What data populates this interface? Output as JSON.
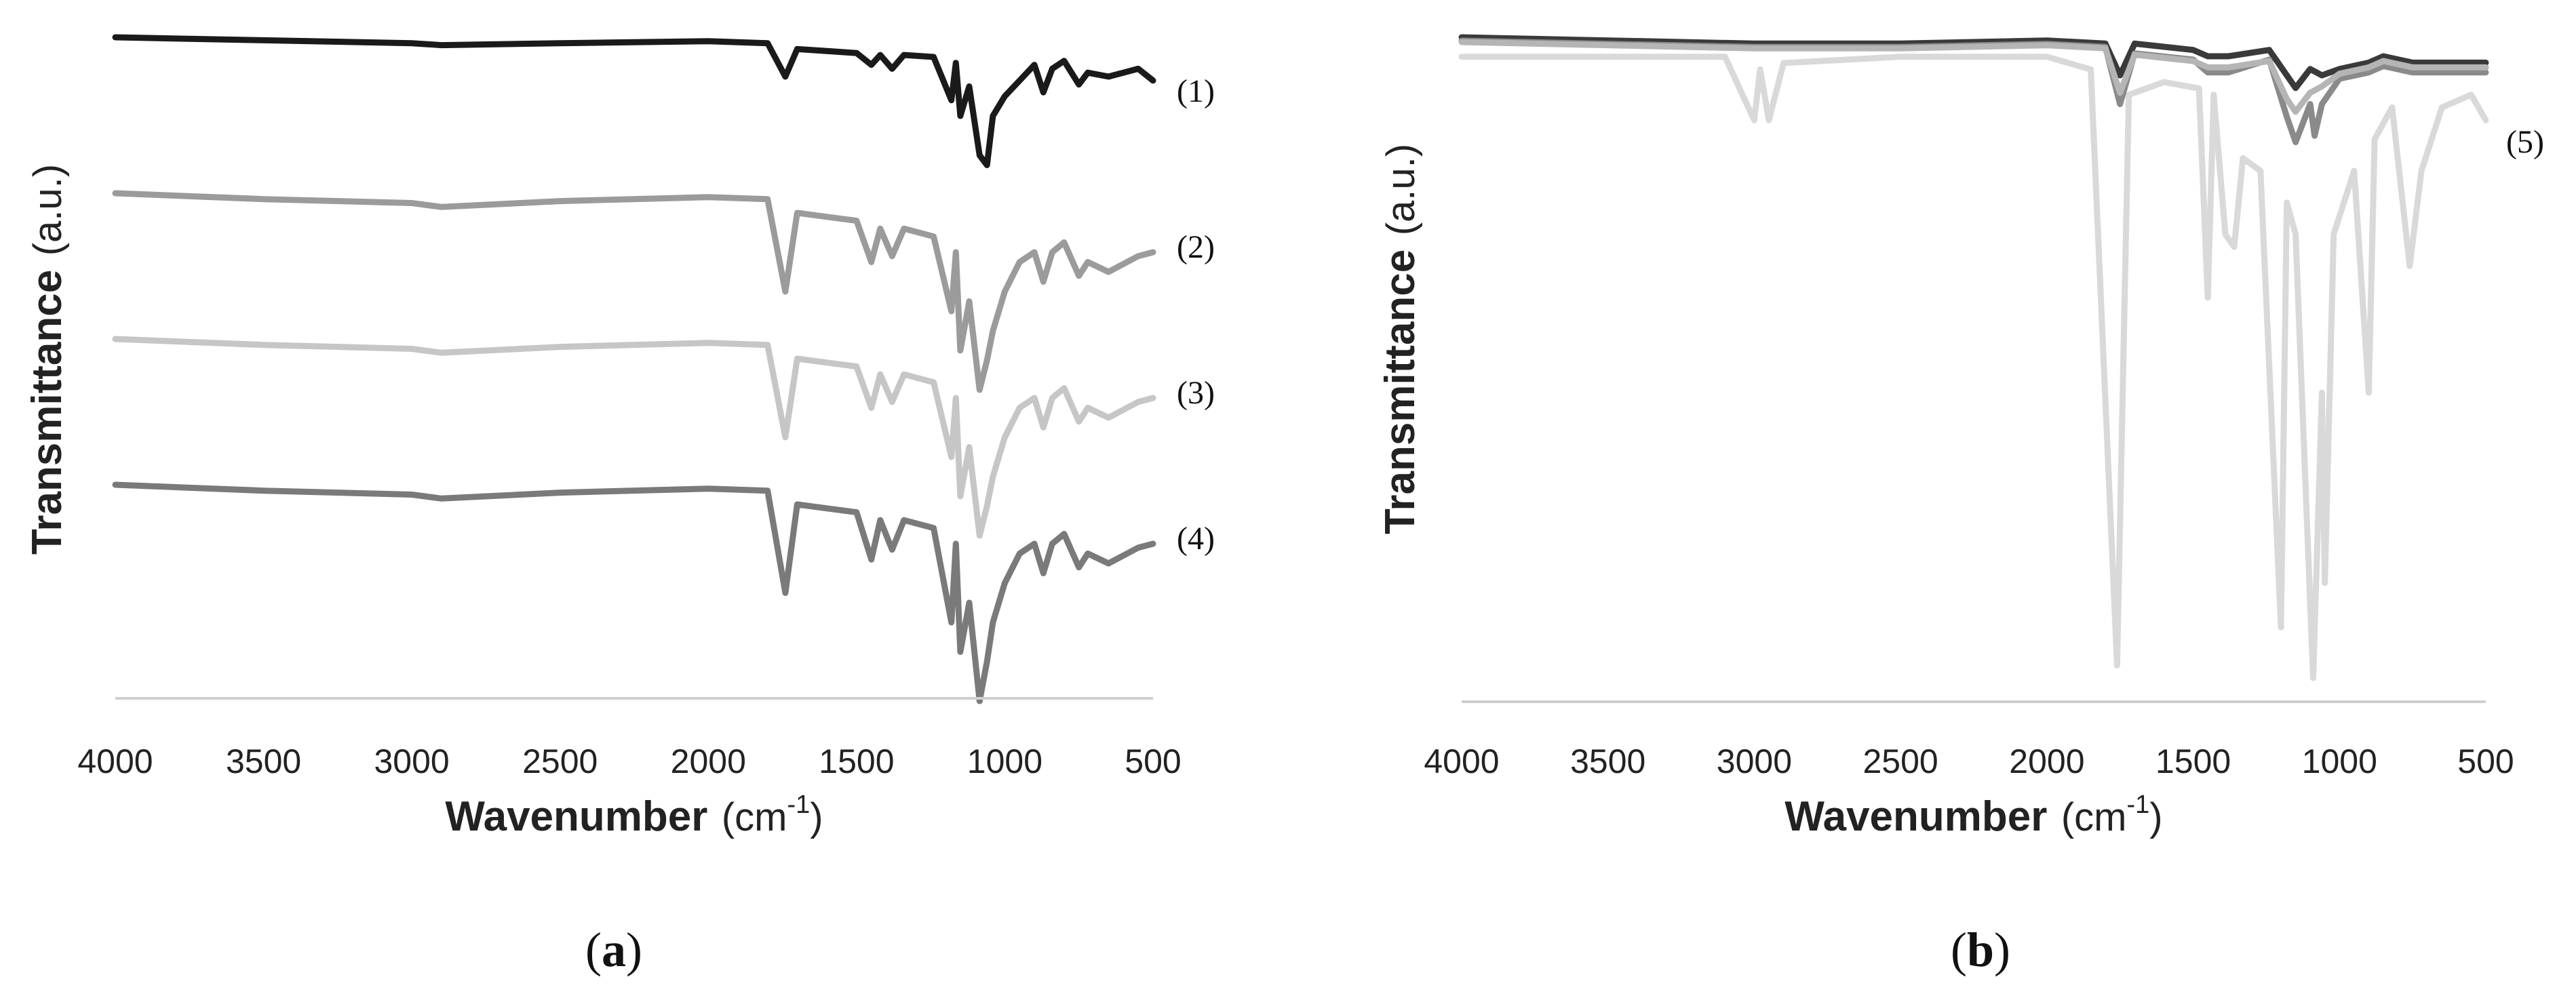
{
  "chart_data": [
    {
      "type": "line",
      "panel_label": {
        "open": "(",
        "letter": "a",
        "close": ")"
      },
      "xlabel": {
        "bold": "Wavenumber",
        "normal": "(cm",
        "superscript": "-1",
        "close": ")"
      },
      "ylabel": {
        "bold": "Transmittance",
        "normal": "(a.u.)"
      },
      "xlim": [
        4000,
        500
      ],
      "x_reversed": true,
      "x_ticks": [
        4000,
        3500,
        3000,
        2500,
        2000,
        1500,
        1000,
        500
      ],
      "y_ticks_shown": false,
      "grid": false,
      "legend": "none",
      "series": [
        {
          "name": "(1)",
          "color": "#1a1a1a",
          "points": [
            [
              4000,
              0.0
            ],
            [
              3500,
              0.015
            ],
            [
              3000,
              0.03
            ],
            [
              2900,
              0.04
            ],
            [
              2500,
              0.03
            ],
            [
              2000,
              0.02
            ],
            [
              1800,
              0.03
            ],
            [
              1740,
              0.2
            ],
            [
              1700,
              0.06
            ],
            [
              1600,
              0.07
            ],
            [
              1500,
              0.08
            ],
            [
              1450,
              0.14
            ],
            [
              1420,
              0.09
            ],
            [
              1380,
              0.16
            ],
            [
              1340,
              0.09
            ],
            [
              1240,
              0.1
            ],
            [
              1180,
              0.32
            ],
            [
              1165,
              0.13
            ],
            [
              1150,
              0.4
            ],
            [
              1120,
              0.25
            ],
            [
              1085,
              0.6
            ],
            [
              1060,
              0.65
            ],
            [
              1040,
              0.4
            ],
            [
              1000,
              0.3
            ],
            [
              950,
              0.22
            ],
            [
              900,
              0.14
            ],
            [
              870,
              0.28
            ],
            [
              840,
              0.16
            ],
            [
              800,
              0.12
            ],
            [
              750,
              0.24
            ],
            [
              720,
              0.18
            ],
            [
              650,
              0.2
            ],
            [
              550,
              0.16
            ],
            [
              500,
              0.22
            ]
          ]
        },
        {
          "name": "(2)",
          "color": "#9b9b9b",
          "points": [
            [
              4000,
              0.0
            ],
            [
              3500,
              0.03
            ],
            [
              3000,
              0.05
            ],
            [
              2900,
              0.07
            ],
            [
              2500,
              0.04
            ],
            [
              2000,
              0.02
            ],
            [
              1800,
              0.03
            ],
            [
              1740,
              0.5
            ],
            [
              1700,
              0.1
            ],
            [
              1600,
              0.12
            ],
            [
              1500,
              0.14
            ],
            [
              1450,
              0.35
            ],
            [
              1420,
              0.18
            ],
            [
              1380,
              0.32
            ],
            [
              1340,
              0.18
            ],
            [
              1240,
              0.22
            ],
            [
              1180,
              0.6
            ],
            [
              1165,
              0.3
            ],
            [
              1150,
              0.8
            ],
            [
              1120,
              0.55
            ],
            [
              1085,
              1.0
            ],
            [
              1060,
              0.85
            ],
            [
              1040,
              0.7
            ],
            [
              1000,
              0.5
            ],
            [
              950,
              0.35
            ],
            [
              900,
              0.3
            ],
            [
              870,
              0.45
            ],
            [
              840,
              0.3
            ],
            [
              800,
              0.25
            ],
            [
              750,
              0.42
            ],
            [
              720,
              0.35
            ],
            [
              650,
              0.4
            ],
            [
              550,
              0.32
            ],
            [
              500,
              0.3
            ]
          ]
        },
        {
          "name": "(3)",
          "color": "#c6c6c6",
          "points": [
            [
              4000,
              0.0
            ],
            [
              3500,
              0.03
            ],
            [
              3000,
              0.05
            ],
            [
              2900,
              0.07
            ],
            [
              2500,
              0.04
            ],
            [
              2000,
              0.02
            ],
            [
              1800,
              0.03
            ],
            [
              1740,
              0.5
            ],
            [
              1700,
              0.1
            ],
            [
              1600,
              0.12
            ],
            [
              1500,
              0.14
            ],
            [
              1450,
              0.35
            ],
            [
              1420,
              0.18
            ],
            [
              1380,
              0.32
            ],
            [
              1340,
              0.18
            ],
            [
              1240,
              0.22
            ],
            [
              1180,
              0.6
            ],
            [
              1165,
              0.3
            ],
            [
              1150,
              0.8
            ],
            [
              1120,
              0.55
            ],
            [
              1085,
              1.0
            ],
            [
              1060,
              0.85
            ],
            [
              1040,
              0.7
            ],
            [
              1000,
              0.5
            ],
            [
              950,
              0.35
            ],
            [
              900,
              0.3
            ],
            [
              870,
              0.45
            ],
            [
              840,
              0.3
            ],
            [
              800,
              0.25
            ],
            [
              750,
              0.42
            ],
            [
              720,
              0.35
            ],
            [
              650,
              0.4
            ],
            [
              550,
              0.32
            ],
            [
              500,
              0.3
            ]
          ]
        },
        {
          "name": "(4)",
          "color": "#7a7a7a",
          "points": [
            [
              4000,
              0.0
            ],
            [
              3500,
              0.03
            ],
            [
              3000,
              0.05
            ],
            [
              2900,
              0.07
            ],
            [
              2500,
              0.04
            ],
            [
              2000,
              0.02
            ],
            [
              1800,
              0.03
            ],
            [
              1740,
              0.55
            ],
            [
              1700,
              0.1
            ],
            [
              1600,
              0.12
            ],
            [
              1500,
              0.14
            ],
            [
              1450,
              0.38
            ],
            [
              1420,
              0.18
            ],
            [
              1380,
              0.33
            ],
            [
              1340,
              0.18
            ],
            [
              1240,
              0.22
            ],
            [
              1180,
              0.7
            ],
            [
              1165,
              0.3
            ],
            [
              1150,
              0.85
            ],
            [
              1120,
              0.6
            ],
            [
              1085,
              1.1
            ],
            [
              1060,
              0.9
            ],
            [
              1040,
              0.7
            ],
            [
              1000,
              0.5
            ],
            [
              950,
              0.35
            ],
            [
              900,
              0.3
            ],
            [
              870,
              0.45
            ],
            [
              840,
              0.3
            ],
            [
              800,
              0.25
            ],
            [
              750,
              0.42
            ],
            [
              720,
              0.35
            ],
            [
              650,
              0.4
            ],
            [
              550,
              0.32
            ],
            [
              500,
              0.3
            ]
          ]
        }
      ]
    },
    {
      "type": "line",
      "panel_label": {
        "open": "(",
        "letter": "b",
        "close": ")"
      },
      "xlabel": {
        "bold": "Wavenumber",
        "normal": "(cm",
        "superscript": "-1",
        "close": ")"
      },
      "ylabel": {
        "bold": "Transmittance",
        "normal": "(a.u.)"
      },
      "xlim": [
        4000,
        500
      ],
      "x_reversed": true,
      "x_ticks": [
        4000,
        3500,
        3000,
        2500,
        2000,
        1500,
        1000,
        500
      ],
      "y_ticks_shown": false,
      "grid": false,
      "legend": "none",
      "series": [
        {
          "name": "(5)",
          "color": "#d9d9d9",
          "points": [
            [
              4000,
              0.02
            ],
            [
              3500,
              0.02
            ],
            [
              3100,
              0.02
            ],
            [
              3000,
              0.12
            ],
            [
              2980,
              0.04
            ],
            [
              2950,
              0.12
            ],
            [
              2900,
              0.03
            ],
            [
              2500,
              0.02
            ],
            [
              2000,
              0.02
            ],
            [
              1850,
              0.04
            ],
            [
              1760,
              0.98
            ],
            [
              1720,
              0.08
            ],
            [
              1600,
              0.06
            ],
            [
              1480,
              0.07
            ],
            [
              1450,
              0.4
            ],
            [
              1430,
              0.08
            ],
            [
              1390,
              0.3
            ],
            [
              1360,
              0.32
            ],
            [
              1330,
              0.18
            ],
            [
              1270,
              0.2
            ],
            [
              1200,
              0.92
            ],
            [
              1180,
              0.25
            ],
            [
              1150,
              0.3
            ],
            [
              1120,
              0.65
            ],
            [
              1090,
              1.0
            ],
            [
              1060,
              0.55
            ],
            [
              1050,
              0.85
            ],
            [
              1020,
              0.3
            ],
            [
              950,
              0.2
            ],
            [
              900,
              0.55
            ],
            [
              880,
              0.15
            ],
            [
              820,
              0.1
            ],
            [
              760,
              0.35
            ],
            [
              720,
              0.2
            ],
            [
              650,
              0.1
            ],
            [
              550,
              0.08
            ],
            [
              500,
              0.12
            ]
          ]
        },
        {
          "color": "#3a3a3a",
          "points": [
            [
              4000,
              0.0
            ],
            [
              3000,
              0.01
            ],
            [
              2500,
              0.01
            ],
            [
              2000,
              0.005
            ],
            [
              1800,
              0.01
            ],
            [
              1750,
              0.06
            ],
            [
              1700,
              0.01
            ],
            [
              1500,
              0.02
            ],
            [
              1450,
              0.03
            ],
            [
              1380,
              0.03
            ],
            [
              1240,
              0.02
            ],
            [
              1180,
              0.06
            ],
            [
              1150,
              0.08
            ],
            [
              1100,
              0.05
            ],
            [
              1060,
              0.06
            ],
            [
              1000,
              0.05
            ],
            [
              900,
              0.04
            ],
            [
              850,
              0.03
            ],
            [
              750,
              0.04
            ],
            [
              600,
              0.04
            ],
            [
              500,
              0.04
            ]
          ]
        },
        {
          "color": "#8a8a8a",
          "points": [
            [
              4000,
              0.0
            ],
            [
              3000,
              0.01
            ],
            [
              2500,
              0.01
            ],
            [
              2000,
              0.005
            ],
            [
              1800,
              0.01
            ],
            [
              1750,
              0.1
            ],
            [
              1700,
              0.02
            ],
            [
              1500,
              0.03
            ],
            [
              1450,
              0.05
            ],
            [
              1380,
              0.05
            ],
            [
              1240,
              0.03
            ],
            [
              1180,
              0.12
            ],
            [
              1150,
              0.16
            ],
            [
              1100,
              0.1
            ],
            [
              1085,
              0.15
            ],
            [
              1060,
              0.1
            ],
            [
              1000,
              0.06
            ],
            [
              900,
              0.05
            ],
            [
              850,
              0.04
            ],
            [
              750,
              0.05
            ],
            [
              600,
              0.05
            ],
            [
              500,
              0.05
            ]
          ]
        },
        {
          "color": "#b5b5b5",
          "points": [
            [
              4000,
              0.0
            ],
            [
              3000,
              0.01
            ],
            [
              2500,
              0.01
            ],
            [
              2000,
              0.005
            ],
            [
              1800,
              0.01
            ],
            [
              1750,
              0.08
            ],
            [
              1700,
              0.02
            ],
            [
              1500,
              0.03
            ],
            [
              1450,
              0.04
            ],
            [
              1380,
              0.04
            ],
            [
              1240,
              0.03
            ],
            [
              1180,
              0.09
            ],
            [
              1150,
              0.11
            ],
            [
              1100,
              0.08
            ],
            [
              1060,
              0.07
            ],
            [
              1000,
              0.05
            ],
            [
              900,
              0.04
            ],
            [
              850,
              0.03
            ],
            [
              750,
              0.04
            ],
            [
              600,
              0.04
            ],
            [
              500,
              0.04
            ]
          ]
        }
      ]
    }
  ]
}
